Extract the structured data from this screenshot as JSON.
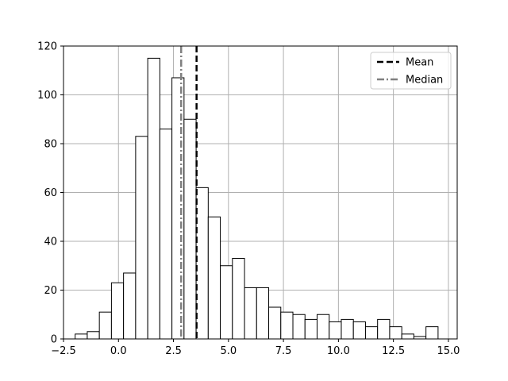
{
  "chart_data": {
    "type": "histogram",
    "title": "",
    "xlabel": "",
    "ylabel": "",
    "xlim": [
      -2.5,
      15.4
    ],
    "ylim": [
      0,
      120
    ],
    "grid": true,
    "legend_position": "top-right",
    "bar_fill": "#ffffff",
    "bar_edge": "#000000",
    "x_ticks": [
      {
        "value": -2.5,
        "label": "−2.5"
      },
      {
        "value": 0.0,
        "label": "0.0"
      },
      {
        "value": 2.5,
        "label": "2.5"
      },
      {
        "value": 5.0,
        "label": "5.0"
      },
      {
        "value": 7.5,
        "label": "7.5"
      },
      {
        "value": 10.0,
        "label": "10.0"
      },
      {
        "value": 12.5,
        "label": "12.5"
      },
      {
        "value": 15.0,
        "label": "15.0"
      }
    ],
    "y_ticks": [
      {
        "value": 0,
        "label": "0"
      },
      {
        "value": 20,
        "label": "20"
      },
      {
        "value": 40,
        "label": "40"
      },
      {
        "value": 60,
        "label": "60"
      },
      {
        "value": 80,
        "label": "80"
      },
      {
        "value": 100,
        "label": "100"
      },
      {
        "value": 120,
        "label": "120"
      }
    ],
    "bin_edges": [
      -1.97,
      -1.42,
      -0.87,
      -0.32,
      0.23,
      0.78,
      1.33,
      1.88,
      2.43,
      2.98,
      3.53,
      4.08,
      4.63,
      5.18,
      5.73,
      6.28,
      6.83,
      7.38,
      7.93,
      8.48,
      9.03,
      9.58,
      10.13,
      10.68,
      11.23,
      11.78,
      12.33,
      12.88,
      13.43,
      13.98,
      14.53
    ],
    "counts": [
      2,
      3,
      11,
      23,
      27,
      83,
      115,
      86,
      107,
      90,
      62,
      50,
      30,
      33,
      21,
      21,
      13,
      11,
      10,
      8,
      10,
      7,
      8,
      7,
      5,
      8,
      5,
      2,
      1,
      5
    ],
    "lines": [
      {
        "name": "Mean",
        "x": 3.55,
        "color": "#000000",
        "dash": "8,4"
      },
      {
        "name": "Median",
        "x": 2.85,
        "color": "#808080",
        "dash": "9,3,2,3"
      }
    ]
  }
}
